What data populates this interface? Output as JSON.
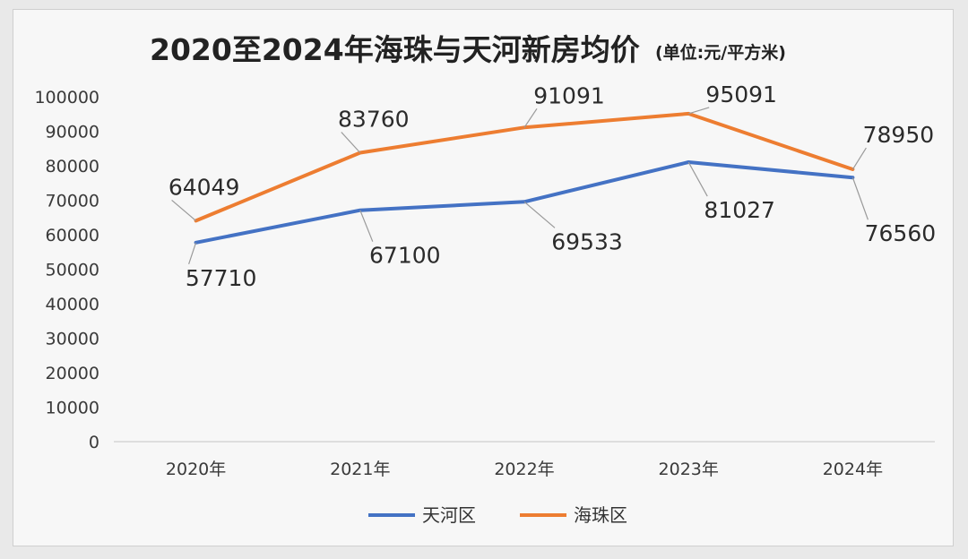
{
  "chart_data": {
    "type": "line",
    "title": "2020至2024年海珠与天河新房均价",
    "subtitle": "(单位:元/平方米)",
    "categories": [
      "2020年",
      "2021年",
      "2022年",
      "2023年",
      "2024年"
    ],
    "ylim": [
      0,
      100000
    ],
    "yticks": [
      0,
      10000,
      20000,
      30000,
      40000,
      50000,
      60000,
      70000,
      80000,
      90000,
      100000
    ],
    "grid": false,
    "legend_position": "bottom",
    "series": [
      {
        "name": "天河区",
        "color": "#4472c4",
        "values": [
          57710,
          67100,
          69533,
          81027,
          76560
        ]
      },
      {
        "name": "海珠区",
        "color": "#ed7d31",
        "values": [
          64049,
          83760,
          91091,
          95091,
          78950
        ]
      }
    ]
  }
}
